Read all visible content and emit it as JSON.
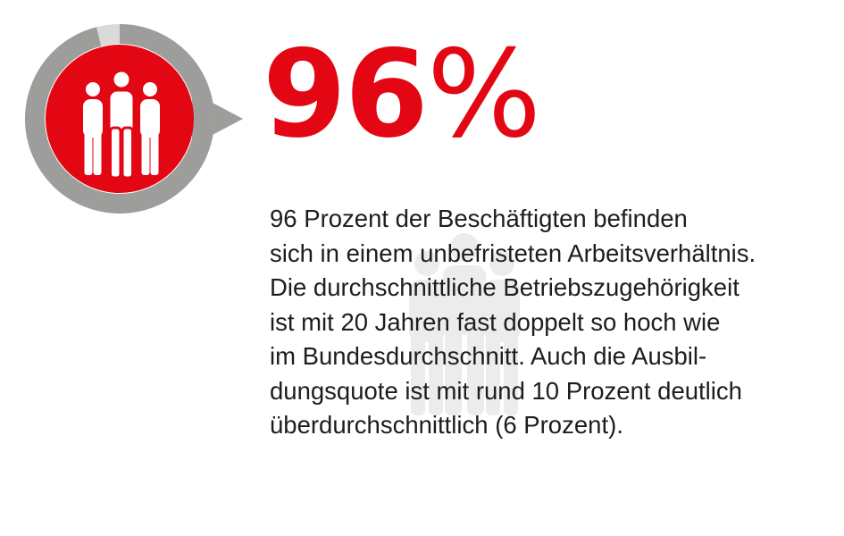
{
  "chart_data": {
    "type": "pie",
    "values": [
      96,
      4
    ],
    "colors": {
      "filled": "#9d9d9c",
      "remainder": "#dadada",
      "center": "#e30613",
      "icon": "#ffffff"
    }
  },
  "headline": {
    "number": "96",
    "percent_sign": "%"
  },
  "description": {
    "lines": [
      "96 Prozent der Beschäftigten befinden",
      "sich in einem unbefristeten Arbeitsverhältnis.",
      "Die durchschnittliche Betriebszugehörigkeit",
      "ist mit 20 Jahren fast doppelt so hoch wie",
      "im Bundesdurchschnitt. Auch die Ausbil-",
      "dungsquote ist mit rund 10 Prozent deutlich",
      "überdurchschnittlich (6 Prozent)."
    ]
  },
  "icons": {
    "center": "people-group-icon",
    "background": "people-group-watermark-icon"
  }
}
